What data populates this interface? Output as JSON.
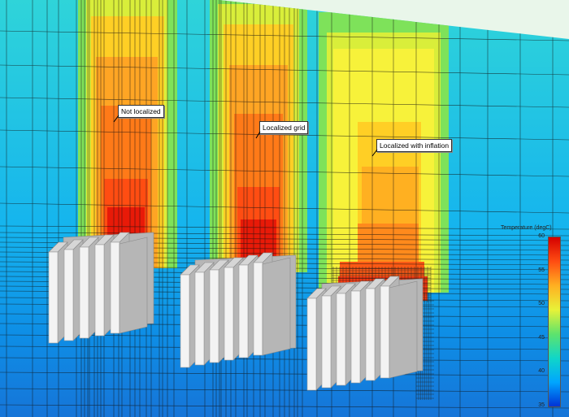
{
  "annotations": {
    "not_localized": "Not localized",
    "localized_grid": "Localized grid",
    "localized_inflation": "Localized with inflation"
  },
  "legend": {
    "title": "Temperature (degC)",
    "min": 35,
    "max": 60,
    "ticks": [
      "60",
      "55",
      "50",
      "45",
      "40",
      "35"
    ],
    "colors": [
      "#0033d6",
      "#00a6ff",
      "#10d6c8",
      "#5ee36c",
      "#e8f238",
      "#ffb021",
      "#ff4d12",
      "#d40000"
    ]
  },
  "colors": {
    "background": "#e9f6ea",
    "heatsink_face": "#f3f3f3",
    "heatsink_side": "#b6b6b6",
    "grid_line": "#111111"
  },
  "heatsinks": [
    {
      "name": "heatsink-not-localized",
      "fins": 5,
      "peak_temp": 60
    },
    {
      "name": "heatsink-localized-grid",
      "fins": 6,
      "peak_temp": 60
    },
    {
      "name": "heatsink-localized-inflation",
      "fins": 6,
      "peak_temp": 56
    }
  ]
}
